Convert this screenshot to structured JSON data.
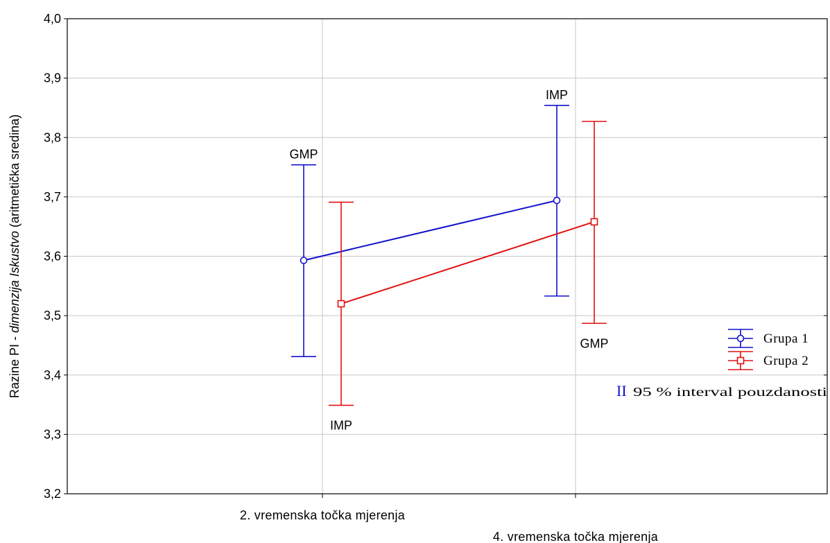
{
  "chart_data": {
    "type": "line",
    "title": "",
    "xlabel": "",
    "ylabel_prefix": "Razine PI - ",
    "ylabel_italic": "dimenzija Iskustvo",
    "ylabel_suffix": " (aritmetička sredina)",
    "ylim": [
      3.2,
      4.0
    ],
    "yticks": [
      {
        "value": 3.2,
        "label": "3,2"
      },
      {
        "value": 3.3,
        "label": "3,3"
      },
      {
        "value": 3.4,
        "label": "3,4"
      },
      {
        "value": 3.5,
        "label": "3,5"
      },
      {
        "value": 3.6,
        "label": "3,6"
      },
      {
        "value": 3.7,
        "label": "3,7"
      },
      {
        "value": 3.8,
        "label": "3,8"
      },
      {
        "value": 3.9,
        "label": "3,9"
      },
      {
        "value": 4.0,
        "label": "4,0"
      }
    ],
    "categories": [
      "2. vremenska točka mjerenja",
      "4. vremenska točka mjerenja"
    ],
    "grid": true,
    "legend_position": "right",
    "series": [
      {
        "name": "Grupa 1",
        "color": "#1010cc",
        "marker": "circle",
        "points": [
          {
            "category": "2. vremenska točka mjerenja",
            "mean": 3.593,
            "ci_low": 3.431,
            "ci_high": 3.754,
            "annotation": "GMP",
            "annotation_side": "above"
          },
          {
            "category": "4. vremenska točka mjerenja",
            "mean": 3.694,
            "ci_low": 3.533,
            "ci_high": 3.854,
            "annotation": "IMP",
            "annotation_side": "above"
          }
        ]
      },
      {
        "name": "Grupa 2",
        "color": "#e01010",
        "marker": "square",
        "points": [
          {
            "category": "2. vremenska točka mjerenja",
            "mean": 3.52,
            "ci_low": 3.349,
            "ci_high": 3.691,
            "annotation": "IMP",
            "annotation_side": "below"
          },
          {
            "category": "4. vremenska točka mjerenja",
            "mean": 3.658,
            "ci_low": 3.487,
            "ci_high": 3.827,
            "annotation": "GMP",
            "annotation_side": "below"
          }
        ]
      }
    ],
    "ci_note": {
      "glyph": "II",
      "glyph_color": "#1010cc",
      "text": "95 % interval pouzdanosti"
    }
  }
}
